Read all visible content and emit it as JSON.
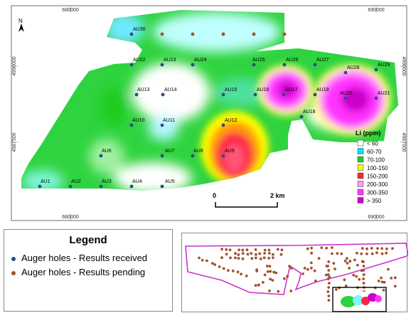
{
  "map": {
    "easting_labels": [
      "680000",
      "690000"
    ],
    "northing_labels": [
      "4990000",
      "4987500"
    ],
    "north_arrow_label": "N",
    "scale_bar": {
      "start_label": "0",
      "end_label": "2 km"
    },
    "holes_received": [
      {
        "label": "AU1",
        "dx": 1,
        "dy": -5
      },
      {
        "label": "AU2",
        "dx": 1,
        "dy": -5
      },
      {
        "label": "AU3",
        "dx": 1,
        "dy": -5
      },
      {
        "label": "AU4",
        "dx": 1,
        "dy": -5
      },
      {
        "label": "AU5",
        "dx": 4,
        "dy": -5
      },
      {
        "label": "AU6",
        "dx": 1,
        "dy": -5
      },
      {
        "label": "AU7",
        "dx": 4,
        "dy": -5
      },
      {
        "label": "AU8",
        "dx": 1,
        "dy": -5
      },
      {
        "label": "AU9",
        "dx": 2,
        "dy": -5
      },
      {
        "label": "AU10",
        "dx": 1,
        "dy": -5
      },
      {
        "label": "AU11",
        "dx": 1,
        "dy": -5
      },
      {
        "label": "AU12",
        "dx": 2,
        "dy": -5
      },
      {
        "label": "AU13",
        "dx": 1,
        "dy": -5
      },
      {
        "label": "AU14",
        "dx": 2,
        "dy": -5
      },
      {
        "label": "AU15",
        "dx": 2,
        "dy": -5
      },
      {
        "label": "AU16",
        "dx": 2,
        "dy": -5
      },
      {
        "label": "AU17",
        "dx": 2,
        "dy": -5
      },
      {
        "label": "AU18",
        "dx": 2,
        "dy": -5
      },
      {
        "label": "AU19",
        "dx": 2,
        "dy": -5
      },
      {
        "label": "AU20",
        "dx": -8,
        "dy": -5
      },
      {
        "label": "AU21",
        "dx": 2,
        "dy": -5
      },
      {
        "label": "AU22",
        "dx": 2,
        "dy": -5
      },
      {
        "label": "AU23",
        "dx": 2,
        "dy": -5
      },
      {
        "label": "AU24",
        "dx": 2,
        "dy": -5
      },
      {
        "label": "AU25",
        "dx": -2,
        "dy": -5
      },
      {
        "label": "AU26",
        "dx": 2,
        "dy": -5
      },
      {
        "label": "AU27",
        "dx": 2,
        "dy": -5
      },
      {
        "label": "AU28",
        "dx": 2,
        "dy": -5
      },
      {
        "label": "AU29",
        "dx": 2,
        "dy": -5
      },
      {
        "label": "AU30",
        "dx": 2,
        "dy": -5
      }
    ],
    "holes_pending_count": 5
  },
  "color_legend": {
    "title": "Li (ppm)",
    "classes": [
      {
        "label": "< 60",
        "color": "#ffffff"
      },
      {
        "label": "60-70",
        "color": "#00e5ff"
      },
      {
        "label": "70-100",
        "color": "#1fcc1f"
      },
      {
        "label": "100-150",
        "color": "#ffff00"
      },
      {
        "label": "150-200",
        "color": "#ff2222"
      },
      {
        "label": "200-300",
        "color": "#ff99ff"
      },
      {
        "label": "300-350",
        "color": "#ff33ff"
      },
      {
        "label": "> 350",
        "color": "#cc00cc"
      }
    ]
  },
  "legend": {
    "title": "Legend",
    "received_label": "Auger holes - Results received",
    "pending_label": "Auger holes - Results pending",
    "received_color": "#2b4a8a",
    "pending_color": "#a0522d"
  },
  "colors": {
    "frame": "#6b6b6b",
    "outline": "#cc33cc",
    "highlight": "#000000"
  }
}
